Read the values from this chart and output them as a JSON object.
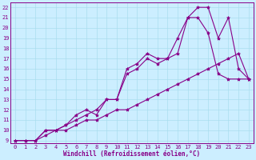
{
  "xlabel": "Windchill (Refroidissement éolien,°C)",
  "bg_color": "#cceeff",
  "line_color": "#880088",
  "xlim": [
    -0.5,
    23.5
  ],
  "ylim": [
    8.7,
    22.5
  ],
  "xticks": [
    0,
    1,
    2,
    3,
    4,
    5,
    6,
    7,
    8,
    9,
    10,
    11,
    12,
    13,
    14,
    15,
    16,
    17,
    18,
    19,
    20,
    21,
    22,
    23
  ],
  "yticks": [
    9,
    10,
    11,
    12,
    13,
    14,
    15,
    16,
    17,
    18,
    19,
    20,
    21,
    22
  ],
  "line1_x": [
    0,
    1,
    2,
    3,
    4,
    5,
    6,
    7,
    8,
    9,
    10,
    11,
    12,
    13,
    14,
    15,
    16,
    17,
    18,
    19,
    20,
    21,
    22,
    23
  ],
  "line1_y": [
    9,
    9,
    9,
    9.5,
    10,
    10,
    10.5,
    11,
    11,
    11.5,
    12,
    12,
    12.5,
    13,
    13.5,
    14,
    14.5,
    15,
    15.5,
    16,
    16.5,
    17,
    17.5,
    15
  ],
  "line2_x": [
    0,
    1,
    2,
    3,
    4,
    5,
    6,
    7,
    8,
    9,
    10,
    11,
    12,
    13,
    14,
    15,
    16,
    17,
    18,
    19,
    20,
    21,
    22,
    23
  ],
  "line2_y": [
    9,
    9,
    9,
    10,
    10,
    10.5,
    11,
    11.5,
    12,
    13,
    13,
    16,
    16.5,
    17.5,
    17,
    17,
    19,
    21,
    22,
    22,
    19,
    21,
    16,
    15
  ],
  "line3_x": [
    0,
    1,
    2,
    3,
    4,
    5,
    6,
    7,
    8,
    9,
    10,
    11,
    12,
    13,
    14,
    15,
    16,
    17,
    18,
    19,
    20,
    21,
    22,
    23
  ],
  "line3_y": [
    9,
    9,
    9,
    10,
    10,
    10.5,
    11.5,
    12,
    11.5,
    13,
    13,
    15.5,
    16,
    17,
    16.5,
    17,
    17.5,
    21,
    21,
    19.5,
    15.5,
    15,
    15,
    15
  ],
  "marker": "*",
  "markersize": 3,
  "linewidth": 0.8,
  "grid_color": "#aaddee",
  "tick_fontsize": 5,
  "xlabel_fontsize": 5.5
}
